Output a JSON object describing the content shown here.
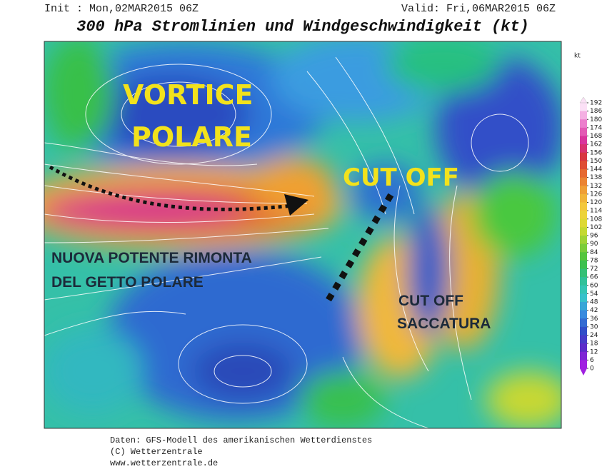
{
  "header": {
    "init": "Init : Mon,02MAR2015 06Z",
    "valid": "Valid: Fri,06MAR2015 06Z",
    "title": "300 hPa Stromlinien und Windgeschwindigkeit (kt)"
  },
  "annotations": {
    "vortex_line1": "VORTICE",
    "vortex_line2": "POLARE",
    "cutoff_north": "CUT OFF",
    "jet_line1": "NUOVA POTENTE RIMONTA",
    "jet_line2": "DEL GETTO POLARE",
    "cutoff_south_line1": "CUT OFF",
    "cutoff_south_line2": "SACCATURA"
  },
  "colorbar": {
    "unit": "kt",
    "ticks": [
      192,
      186,
      180,
      174,
      168,
      162,
      156,
      150,
      144,
      138,
      132,
      126,
      120,
      114,
      108,
      102,
      96,
      90,
      84,
      78,
      72,
      66,
      60,
      54,
      48,
      42,
      36,
      30,
      24,
      18,
      12,
      6,
      0
    ]
  },
  "footer": {
    "line1": "Daten: GFS-Modell des amerikanischen Wetterdienstes",
    "line2": "(C) Wetterzentrale",
    "line3": "www.wetterzentrale.de"
  }
}
